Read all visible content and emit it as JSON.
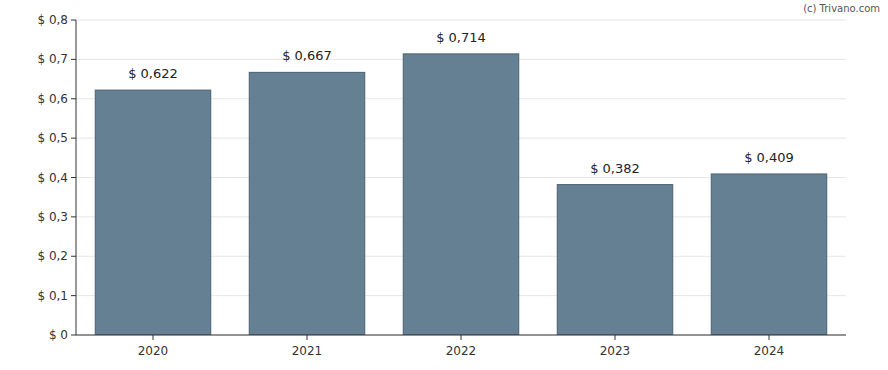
{
  "chart_data": {
    "type": "bar",
    "categories": [
      "2020",
      "2021",
      "2022",
      "2023",
      "2024"
    ],
    "values": [
      0.622,
      0.667,
      0.714,
      0.382,
      0.409
    ],
    "value_labels": [
      "$ 0,622",
      "$ 0,667",
      "$ 0,714",
      "$ 0,382",
      "$ 0,409"
    ],
    "color": "#657f93",
    "ylim": [
      0,
      0.8
    ],
    "yticks": [
      {
        "value": 0,
        "label": "$ 0"
      },
      {
        "value": 0.1,
        "label": "$ 0,1"
      },
      {
        "value": 0.2,
        "label": "$ 0,2"
      },
      {
        "value": 0.3,
        "label": "$ 0,3"
      },
      {
        "value": 0.4,
        "label": "$ 0,4"
      },
      {
        "value": 0.5,
        "label": "$ 0,5"
      },
      {
        "value": 0.6,
        "label": "$ 0,6"
      },
      {
        "value": 0.7,
        "label": "$ 0,7"
      },
      {
        "value": 0.8,
        "label": "$ 0,8"
      }
    ],
    "grid": true,
    "data_labels": true,
    "annotations": [
      "(c) Trivano.com"
    ]
  }
}
